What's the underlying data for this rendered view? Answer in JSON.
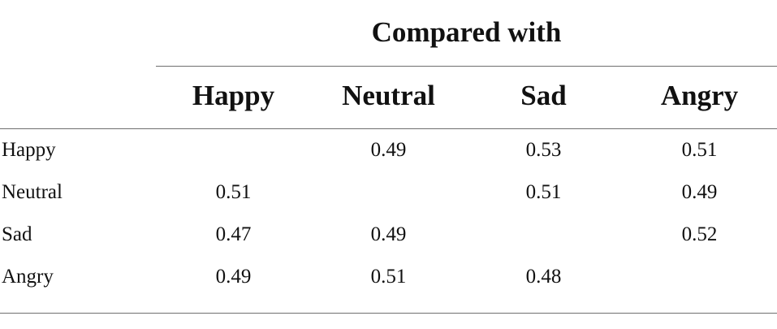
{
  "table": {
    "group_header": "Compared with",
    "columns": [
      "Happy",
      "Neutral",
      "Sad",
      "Angry"
    ],
    "rows": [
      {
        "label": "Happy",
        "cells": [
          "",
          "0.49",
          "0.53",
          "0.51"
        ]
      },
      {
        "label": "Neutral",
        "cells": [
          "0.51",
          "",
          "0.51",
          "0.49"
        ]
      },
      {
        "label": "Sad",
        "cells": [
          "0.47",
          "0.49",
          "",
          "0.52"
        ]
      },
      {
        "label": "Angry",
        "cells": [
          "0.49",
          "0.51",
          "0.48",
          ""
        ]
      }
    ]
  }
}
